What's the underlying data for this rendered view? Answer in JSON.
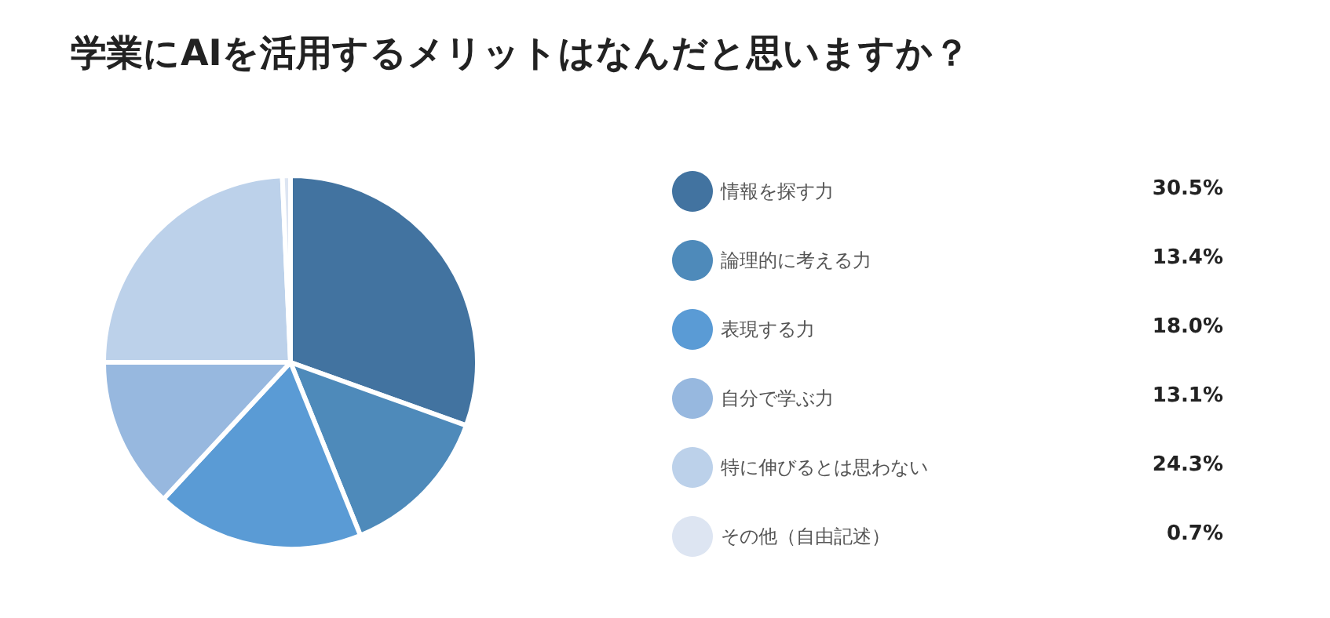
{
  "chart_data": {
    "type": "pie",
    "title": "学業にAIを活用するメリットはなんだと思いますか？",
    "categories": [
      "情報を探す力",
      "論理的に考える力",
      "表現する力",
      "自分で学ぶ力",
      "特に伸びるとは思わない",
      "その他（自由記述）"
    ],
    "values": [
      30.5,
      13.4,
      18.0,
      13.1,
      24.3,
      0.7
    ],
    "value_labels": [
      "30.5%",
      "13.4%",
      "18.0%",
      "13.1%",
      "24.3%",
      "0.7%"
    ],
    "colors": [
      "#4273a0",
      "#4e8aba",
      "#5a9bd5",
      "#97b8df",
      "#bcd1ea",
      "#dde5f2"
    ],
    "legend": "right"
  }
}
